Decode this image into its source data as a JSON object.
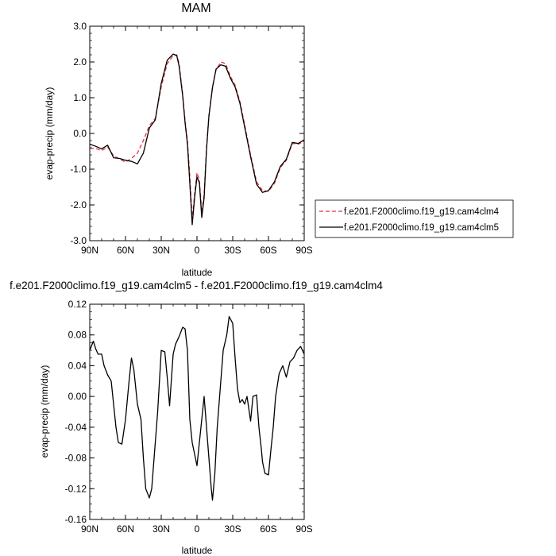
{
  "chart_data": [
    {
      "type": "line",
      "title": "MAM",
      "xlabel": "latitude",
      "ylabel": "evap-precip (mm/day)",
      "x_ticks": [
        90,
        60,
        30,
        0,
        -30,
        -60,
        -90
      ],
      "x_tick_labels": [
        "90N",
        "60N",
        "30N",
        "0",
        "30S",
        "60S",
        "90S"
      ],
      "xlim": [
        90,
        -90
      ],
      "ylim": [
        -3.0,
        3.0
      ],
      "y_ticks": [
        -3.0,
        -2.0,
        -1.0,
        0.0,
        1.0,
        2.0,
        3.0
      ],
      "y_tick_labels": [
        "-3.0",
        "-2.0",
        "-1.0",
        "0.0",
        "1.0",
        "2.0",
        "3.0"
      ],
      "grid": false,
      "legend_position": "right",
      "series": [
        {
          "name": "f.e201.F2000climo.f19_g19.cam4clm4",
          "color": "#e8333a",
          "dash": "dashed",
          "x": [
            90,
            85,
            80,
            75,
            70,
            65,
            60,
            55,
            50,
            45,
            40,
            35,
            30,
            25,
            20,
            17,
            15,
            12,
            10,
            8,
            6,
            4,
            2,
            0,
            -2,
            -4,
            -6,
            -8,
            -10,
            -13,
            -16,
            -20,
            -24,
            -28,
            -32,
            -36,
            -40,
            -45,
            -50,
            -55,
            -60,
            -65,
            -70,
            -75,
            -80,
            -85,
            -90
          ],
          "y": [
            -0.42,
            -0.42,
            -0.48,
            -0.38,
            -0.62,
            -0.72,
            -0.8,
            -0.7,
            -0.55,
            -0.2,
            0.22,
            0.42,
            1.3,
            1.95,
            2.18,
            2.2,
            1.95,
            1.1,
            0.35,
            -0.2,
            -1.2,
            -2.4,
            -1.7,
            -1.1,
            -1.3,
            -2.2,
            -1.7,
            -0.4,
            0.5,
            1.3,
            1.78,
            2.0,
            1.95,
            1.6,
            1.35,
            0.9,
            0.25,
            -0.6,
            -1.35,
            -1.6,
            -1.62,
            -1.4,
            -0.95,
            -0.75,
            -0.28,
            -0.3,
            -0.22
          ]
        },
        {
          "name": "f.e201.F2000climo.f19_g19.cam4clm5",
          "color": "#000000",
          "dash": "solid",
          "x": [
            90,
            85,
            80,
            75,
            70,
            65,
            60,
            55,
            50,
            45,
            40,
            35,
            30,
            25,
            20,
            17,
            15,
            12,
            10,
            8,
            6,
            4,
            2,
            0,
            -2,
            -4,
            -6,
            -8,
            -10,
            -13,
            -16,
            -20,
            -24,
            -28,
            -32,
            -36,
            -40,
            -45,
            -50,
            -55,
            -60,
            -65,
            -70,
            -75,
            -80,
            -85,
            -90
          ],
          "y": [
            -0.3,
            -0.36,
            -0.43,
            -0.33,
            -0.68,
            -0.7,
            -0.75,
            -0.78,
            -0.85,
            -0.55,
            0.15,
            0.38,
            1.4,
            2.05,
            2.22,
            2.18,
            1.88,
            1.05,
            0.3,
            -0.3,
            -1.4,
            -2.55,
            -1.8,
            -1.22,
            -1.38,
            -2.35,
            -1.8,
            -0.45,
            0.48,
            1.28,
            1.8,
            1.92,
            1.88,
            1.55,
            1.3,
            0.85,
            0.18,
            -0.65,
            -1.42,
            -1.65,
            -1.6,
            -1.35,
            -0.92,
            -0.72,
            -0.25,
            -0.28,
            -0.18
          ]
        }
      ]
    },
    {
      "type": "line",
      "title": "f.e201.F2000climo.f19_g19.cam4clm5 - f.e201.F2000climo.f19_g19.cam4clm4",
      "xlabel": "latitude",
      "ylabel": "evap-precip (mm/day)",
      "x_ticks": [
        90,
        60,
        30,
        0,
        -30,
        -60,
        -90
      ],
      "x_tick_labels": [
        "90N",
        "60N",
        "30N",
        "0",
        "30S",
        "60S",
        "90S"
      ],
      "xlim": [
        90,
        -90
      ],
      "ylim": [
        -0.16,
        0.12
      ],
      "y_ticks": [
        -0.16,
        -0.12,
        -0.08,
        -0.04,
        0.0,
        0.04,
        0.08,
        0.12
      ],
      "y_tick_labels": [
        "-0.16",
        "-0.12",
        "-0.08",
        "-0.04",
        "0.00",
        "0.04",
        "0.08",
        "0.12"
      ],
      "grid": false,
      "series": [
        {
          "color": "#000000",
          "dash": "solid",
          "x": [
            90,
            87,
            85,
            83,
            80,
            78,
            75,
            72,
            70,
            68,
            66,
            63,
            60,
            57,
            55,
            53,
            50,
            47,
            45,
            43,
            40,
            38,
            35,
            33,
            30,
            27,
            25,
            23,
            20,
            18,
            15,
            12,
            10,
            8,
            6,
            4,
            2,
            0,
            -2,
            -4,
            -6,
            -8,
            -10,
            -12,
            -13,
            -15,
            -17,
            -20,
            -22,
            -25,
            -27,
            -30,
            -32,
            -34,
            -36,
            -38,
            -40,
            -42,
            -45,
            -47,
            -50,
            -52,
            -54,
            -55,
            -57,
            -60,
            -62,
            -64,
            -66,
            -69,
            -72,
            -75,
            -78,
            -81,
            -84,
            -87,
            -90
          ],
          "y": [
            0.06,
            0.072,
            0.062,
            0.055,
            0.055,
            0.04,
            0.028,
            0.02,
            -0.01,
            -0.04,
            -0.06,
            -0.062,
            -0.03,
            0.02,
            0.05,
            0.035,
            -0.01,
            -0.03,
            -0.08,
            -0.12,
            -0.132,
            -0.12,
            -0.06,
            -0.02,
            0.06,
            0.058,
            0.025,
            -0.012,
            0.055,
            0.068,
            0.078,
            0.09,
            0.088,
            0.06,
            -0.03,
            -0.06,
            -0.075,
            -0.09,
            -0.06,
            -0.03,
            0.0,
            -0.04,
            -0.08,
            -0.12,
            -0.135,
            -0.1,
            -0.04,
            0.02,
            0.06,
            0.08,
            0.104,
            0.095,
            0.05,
            0.01,
            -0.008,
            -0.004,
            -0.01,
            0.0,
            -0.032,
            0.0,
            0.002,
            -0.04,
            -0.068,
            -0.085,
            -0.1,
            -0.102,
            -0.07,
            -0.04,
            0.0,
            0.03,
            0.04,
            0.025,
            0.045,
            0.05,
            0.06,
            0.065,
            0.055
          ]
        }
      ]
    }
  ]
}
